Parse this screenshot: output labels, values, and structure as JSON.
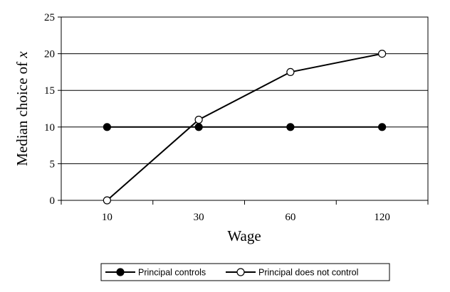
{
  "chart_data": {
    "type": "line",
    "title": "",
    "xlabel": "Wage",
    "ylabel_prefix": "Median choice of ",
    "ylabel_var": "x",
    "categories": [
      "10",
      "30",
      "60",
      "120"
    ],
    "ylim": [
      0,
      25
    ],
    "yticks": [
      0,
      5,
      10,
      15,
      20,
      25
    ],
    "grid": true,
    "legend_position": "bottom",
    "series": [
      {
        "name": "Principal controls",
        "values": [
          10,
          10,
          10,
          10
        ],
        "marker": "filled-circle",
        "color": "#000000"
      },
      {
        "name": "Principal does not control",
        "values": [
          0,
          11,
          17.5,
          20
        ],
        "marker": "open-circle",
        "color": "#000000"
      }
    ]
  }
}
